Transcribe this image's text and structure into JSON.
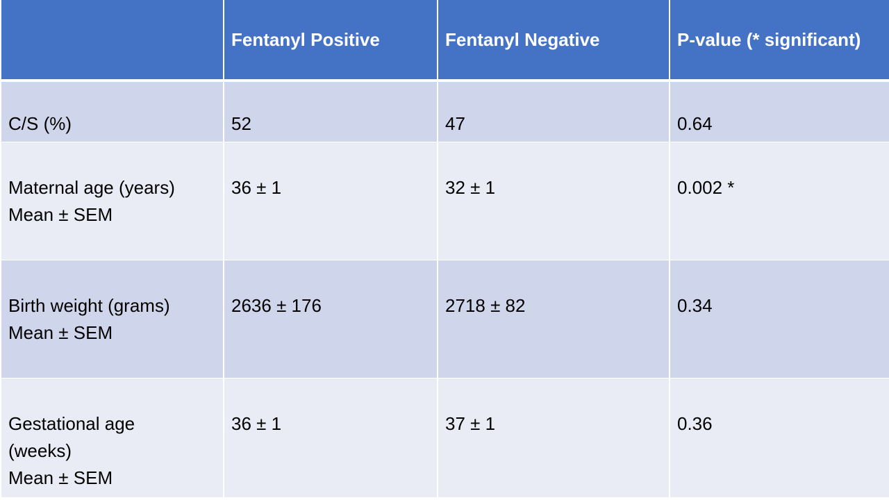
{
  "table": {
    "headers": [
      "",
      "Fentanyl Positive",
      "Fentanyl Negative",
      "P-value (* significant)"
    ],
    "rows": [
      {
        "label_lines": [
          "C/S (%)"
        ],
        "positive": "52",
        "negative": "47",
        "p_value": "0.64"
      },
      {
        "label_lines": [
          "Maternal age (years)",
          "Mean ± SEM"
        ],
        "positive": "36 ± 1",
        "negative": "32 ± 1",
        "p_value": "0.002 *"
      },
      {
        "label_lines": [
          "Birth weight (grams)",
          "Mean ± SEM"
        ],
        "positive": "2636 ± 176",
        "negative": "2718 ± 82",
        "p_value": "0.34"
      },
      {
        "label_lines": [
          "Gestational age",
          "(weeks)",
          "Mean ± SEM"
        ],
        "positive": "36 ± 1",
        "negative": "37 ± 1",
        "p_value": "0.36"
      }
    ]
  },
  "colors": {
    "header_bg": "#4472c4",
    "row_odd_bg": "#cfd5ea",
    "row_even_bg": "#e9ebf5"
  }
}
